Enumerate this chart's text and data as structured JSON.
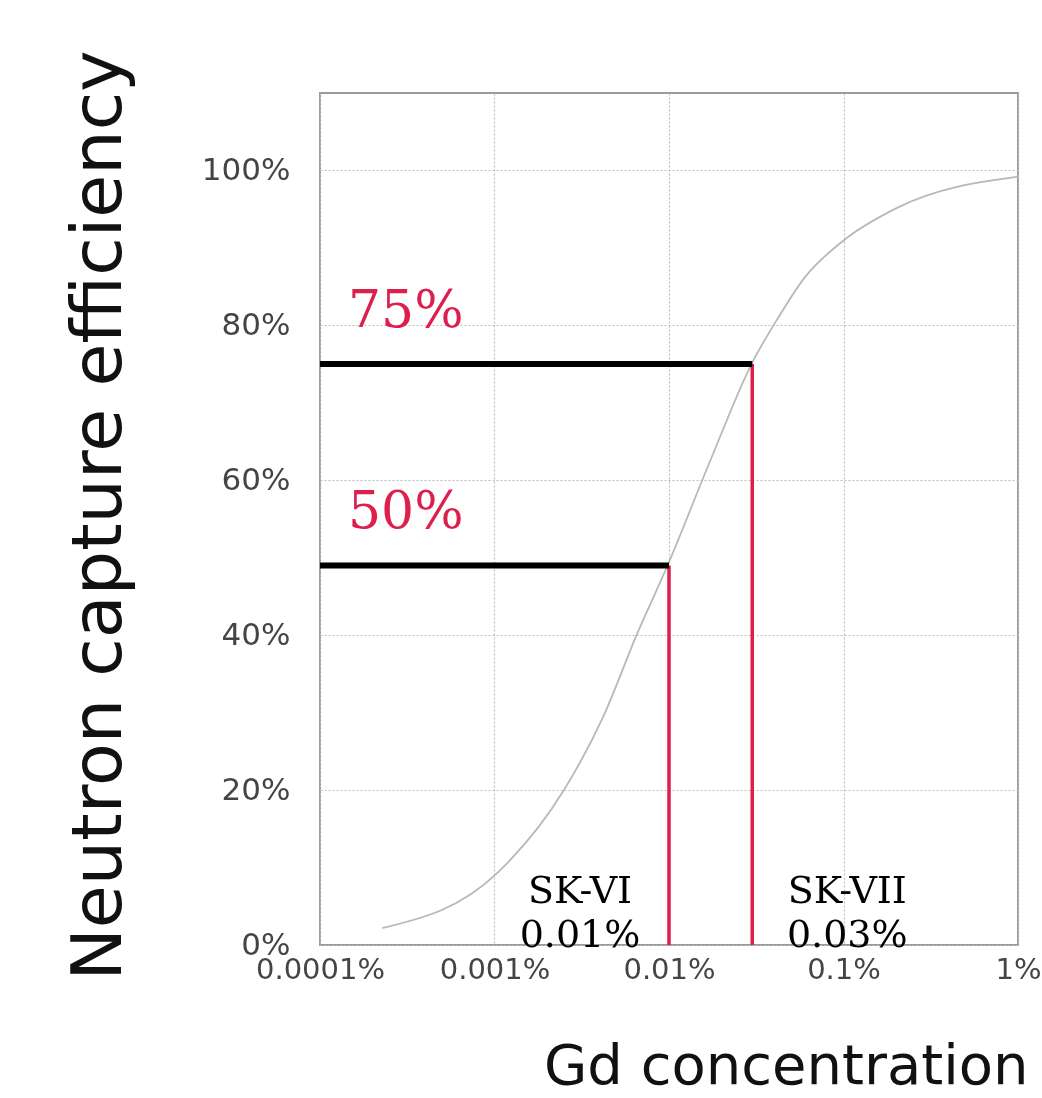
{
  "chart_data": {
    "type": "line",
    "xlabel": "Gd concentration",
    "ylabel": "Neutron capture efficiency",
    "log": "x",
    "grid": true,
    "marker": "none",
    "line_style": "solid",
    "xlim": [
      0.0001,
      1
    ],
    "xticks": [
      {
        "value": 0.0001,
        "label": "0.0001%"
      },
      {
        "value": 0.001,
        "label": "0.001%"
      },
      {
        "value": 0.01,
        "label": "0.01%"
      },
      {
        "value": 0.1,
        "label": "0.1%"
      },
      {
        "value": 1,
        "label": "1%"
      }
    ],
    "ylim": [
      0,
      110
    ],
    "yticks": [
      {
        "value": 0,
        "label": "0%"
      },
      {
        "value": 20,
        "label": "20%"
      },
      {
        "value": 40,
        "label": "40%"
      },
      {
        "value": 60,
        "label": "60%"
      },
      {
        "value": 80,
        "label": "80%"
      },
      {
        "value": 100,
        "label": "100%"
      }
    ],
    "x": [
      0.00023,
      0.00105,
      0.0025,
      0.0042,
      0.0066,
      0.0099,
      0.017,
      0.03,
      0.042,
      0.06,
      0.098,
      0.2,
      1
    ],
    "series": [
      {
        "color": "#b8b8b8",
        "values": [
          2.2,
          9.4,
          20,
          29.5,
          40.3,
          49.2,
          62.2,
          75.2,
          80.9,
          86.2,
          90.8,
          95.1,
          99.2
        ]
      }
    ],
    "annotations": [
      {
        "text": "75%",
        "x": 0.03,
        "y": 75
      },
      {
        "text": "50%",
        "x": 0.01,
        "y": 49
      },
      "SK-VI\n0.01%",
      "SK-VII\n0.03%"
    ]
  }
}
